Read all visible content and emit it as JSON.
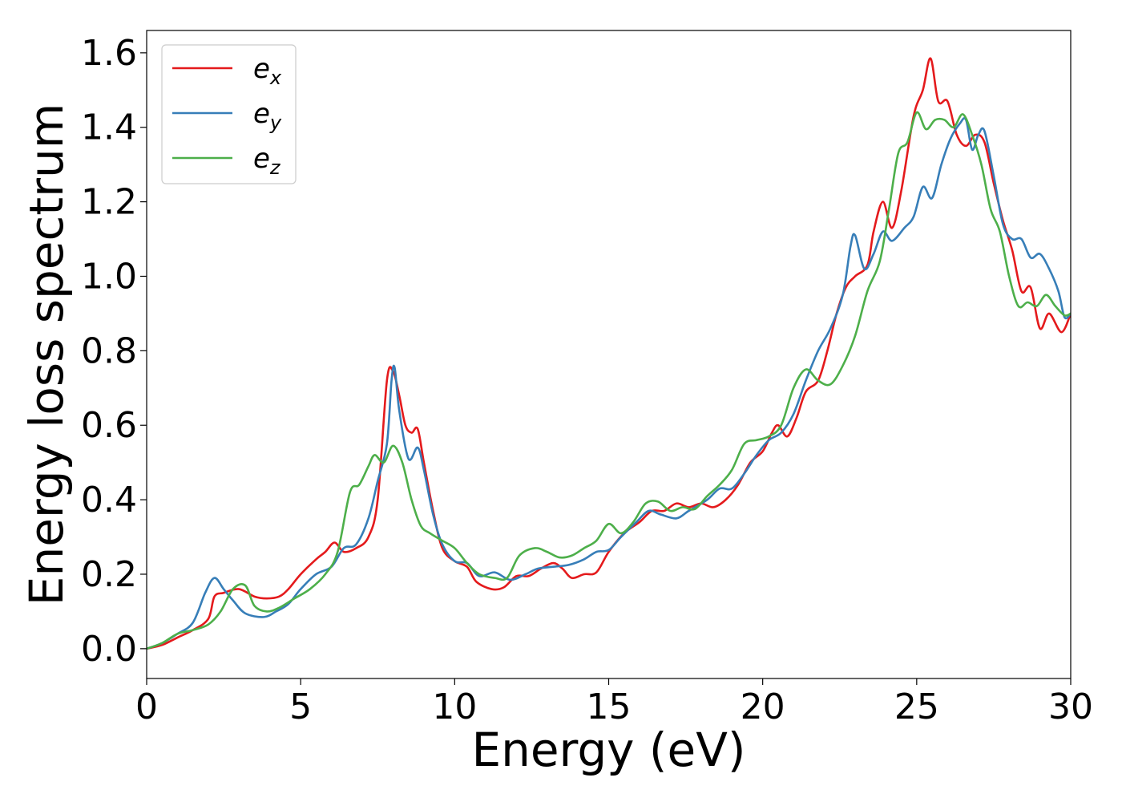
{
  "chart_data": {
    "type": "line",
    "xlabel": "Energy (eV)",
    "ylabel": "Energy loss spectrum",
    "xlim": [
      0,
      30
    ],
    "ylim": [
      -0.08,
      1.66
    ],
    "xticks": [
      "0",
      "5",
      "10",
      "15",
      "20",
      "25",
      "30"
    ],
    "yticks": [
      "0.0",
      "0.2",
      "0.4",
      "0.6",
      "0.8",
      "1.0",
      "1.2",
      "1.4",
      "1.6"
    ],
    "grid": false,
    "legend_position": "top-left",
    "series": [
      {
        "name": "e_x",
        "legend_base": "e",
        "legend_sub": "x",
        "color": "#e41a1c",
        "points": [
          [
            0,
            0
          ],
          [
            0.5,
            0.01
          ],
          [
            1,
            0.03
          ],
          [
            1.5,
            0.05
          ],
          [
            2,
            0.08
          ],
          [
            2.2,
            0.14
          ],
          [
            2.5,
            0.15
          ],
          [
            3,
            0.16
          ],
          [
            3.5,
            0.14
          ],
          [
            3.9,
            0.135
          ],
          [
            4.3,
            0.14
          ],
          [
            4.6,
            0.16
          ],
          [
            5,
            0.2
          ],
          [
            5.5,
            0.24
          ],
          [
            5.8,
            0.26
          ],
          [
            6.1,
            0.285
          ],
          [
            6.4,
            0.26
          ],
          [
            6.8,
            0.27
          ],
          [
            7.2,
            0.3
          ],
          [
            7.5,
            0.4
          ],
          [
            7.8,
            0.72
          ],
          [
            8.0,
            0.745
          ],
          [
            8.2,
            0.68
          ],
          [
            8.4,
            0.6
          ],
          [
            8.6,
            0.58
          ],
          [
            8.8,
            0.59
          ],
          [
            9.0,
            0.5
          ],
          [
            9.3,
            0.37
          ],
          [
            9.6,
            0.27
          ],
          [
            10,
            0.235
          ],
          [
            10.4,
            0.22
          ],
          [
            10.7,
            0.18
          ],
          [
            11.2,
            0.16
          ],
          [
            11.6,
            0.165
          ],
          [
            12,
            0.195
          ],
          [
            12.4,
            0.195
          ],
          [
            12.8,
            0.215
          ],
          [
            13.2,
            0.23
          ],
          [
            13.5,
            0.215
          ],
          [
            13.8,
            0.19
          ],
          [
            14.2,
            0.2
          ],
          [
            14.6,
            0.205
          ],
          [
            15,
            0.26
          ],
          [
            15.5,
            0.31
          ],
          [
            16.0,
            0.34
          ],
          [
            16.4,
            0.37
          ],
          [
            16.8,
            0.37
          ],
          [
            17.2,
            0.39
          ],
          [
            17.6,
            0.38
          ],
          [
            18,
            0.39
          ],
          [
            18.4,
            0.38
          ],
          [
            18.8,
            0.4
          ],
          [
            19.2,
            0.44
          ],
          [
            19.6,
            0.5
          ],
          [
            20,
            0.53
          ],
          [
            20.3,
            0.58
          ],
          [
            20.5,
            0.6
          ],
          [
            20.8,
            0.57
          ],
          [
            21.1,
            0.62
          ],
          [
            21.4,
            0.69
          ],
          [
            21.8,
            0.72
          ],
          [
            22.1,
            0.8
          ],
          [
            22.4,
            0.9
          ],
          [
            22.7,
            0.97
          ],
          [
            23.0,
            1.0
          ],
          [
            23.4,
            1.03
          ],
          [
            23.6,
            1.12
          ],
          [
            23.9,
            1.2
          ],
          [
            24.2,
            1.13
          ],
          [
            24.5,
            1.23
          ],
          [
            24.9,
            1.43
          ],
          [
            25.2,
            1.5
          ],
          [
            25.45,
            1.585
          ],
          [
            25.7,
            1.47
          ],
          [
            26.0,
            1.47
          ],
          [
            26.3,
            1.38
          ],
          [
            26.6,
            1.35
          ],
          [
            26.9,
            1.38
          ],
          [
            27.2,
            1.36
          ],
          [
            27.5,
            1.25
          ],
          [
            27.8,
            1.15
          ],
          [
            28.1,
            1.07
          ],
          [
            28.4,
            0.96
          ],
          [
            28.7,
            0.97
          ],
          [
            29.0,
            0.86
          ],
          [
            29.3,
            0.9
          ],
          [
            29.7,
            0.85
          ],
          [
            30,
            0.9
          ]
        ]
      },
      {
        "name": "e_y",
        "legend_base": "e",
        "legend_sub": "y",
        "color": "#377eb8",
        "points": [
          [
            0,
            0
          ],
          [
            0.5,
            0.015
          ],
          [
            1,
            0.04
          ],
          [
            1.5,
            0.07
          ],
          [
            1.9,
            0.15
          ],
          [
            2.2,
            0.19
          ],
          [
            2.5,
            0.16
          ],
          [
            2.8,
            0.13
          ],
          [
            3.2,
            0.095
          ],
          [
            3.8,
            0.085
          ],
          [
            4.2,
            0.1
          ],
          [
            4.6,
            0.12
          ],
          [
            5,
            0.16
          ],
          [
            5.5,
            0.2
          ],
          [
            6,
            0.22
          ],
          [
            6.4,
            0.27
          ],
          [
            6.8,
            0.28
          ],
          [
            7.2,
            0.35
          ],
          [
            7.5,
            0.45
          ],
          [
            7.8,
            0.55
          ],
          [
            7.95,
            0.72
          ],
          [
            8.05,
            0.755
          ],
          [
            8.2,
            0.64
          ],
          [
            8.5,
            0.51
          ],
          [
            8.8,
            0.54
          ],
          [
            9.0,
            0.48
          ],
          [
            9.3,
            0.36
          ],
          [
            9.6,
            0.28
          ],
          [
            10,
            0.235
          ],
          [
            10.4,
            0.23
          ],
          [
            10.8,
            0.195
          ],
          [
            11.3,
            0.205
          ],
          [
            11.8,
            0.185
          ],
          [
            12.3,
            0.2
          ],
          [
            12.7,
            0.215
          ],
          [
            13.2,
            0.22
          ],
          [
            13.7,
            0.225
          ],
          [
            14.2,
            0.24
          ],
          [
            14.6,
            0.26
          ],
          [
            15.0,
            0.265
          ],
          [
            15.4,
            0.3
          ],
          [
            15.9,
            0.34
          ],
          [
            16.3,
            0.37
          ],
          [
            16.7,
            0.36
          ],
          [
            17.2,
            0.35
          ],
          [
            17.6,
            0.37
          ],
          [
            18.2,
            0.4
          ],
          [
            18.6,
            0.43
          ],
          [
            19.0,
            0.43
          ],
          [
            19.4,
            0.47
          ],
          [
            19.8,
            0.52
          ],
          [
            20.2,
            0.56
          ],
          [
            20.6,
            0.58
          ],
          [
            21.0,
            0.63
          ],
          [
            21.4,
            0.72
          ],
          [
            21.8,
            0.8
          ],
          [
            22.2,
            0.86
          ],
          [
            22.6,
            0.95
          ],
          [
            22.85,
            1.08
          ],
          [
            23.0,
            1.11
          ],
          [
            23.3,
            1.02
          ],
          [
            23.6,
            1.06
          ],
          [
            23.9,
            1.12
          ],
          [
            24.2,
            1.095
          ],
          [
            24.6,
            1.13
          ],
          [
            24.9,
            1.16
          ],
          [
            25.2,
            1.24
          ],
          [
            25.5,
            1.21
          ],
          [
            25.8,
            1.3
          ],
          [
            26.1,
            1.37
          ],
          [
            26.4,
            1.41
          ],
          [
            26.6,
            1.42
          ],
          [
            26.8,
            1.34
          ],
          [
            27.0,
            1.38
          ],
          [
            27.2,
            1.39
          ],
          [
            27.5,
            1.27
          ],
          [
            27.8,
            1.14
          ],
          [
            28.1,
            1.1
          ],
          [
            28.4,
            1.1
          ],
          [
            28.7,
            1.05
          ],
          [
            29.0,
            1.06
          ],
          [
            29.3,
            1.02
          ],
          [
            29.6,
            0.96
          ],
          [
            29.8,
            0.89
          ],
          [
            30,
            0.9
          ]
        ]
      },
      {
        "name": "e_z",
        "legend_base": "e",
        "legend_sub": "z",
        "color": "#4daf4a",
        "points": [
          [
            0,
            0
          ],
          [
            0.5,
            0.015
          ],
          [
            1,
            0.04
          ],
          [
            1.5,
            0.05
          ],
          [
            2,
            0.065
          ],
          [
            2.4,
            0.1
          ],
          [
            2.8,
            0.16
          ],
          [
            3.2,
            0.17
          ],
          [
            3.5,
            0.115
          ],
          [
            3.9,
            0.1
          ],
          [
            4.3,
            0.11
          ],
          [
            4.8,
            0.135
          ],
          [
            5.3,
            0.16
          ],
          [
            5.8,
            0.2
          ],
          [
            6.2,
            0.26
          ],
          [
            6.6,
            0.42
          ],
          [
            6.9,
            0.44
          ],
          [
            7.2,
            0.49
          ],
          [
            7.4,
            0.52
          ],
          [
            7.7,
            0.5
          ],
          [
            8.0,
            0.545
          ],
          [
            8.3,
            0.5
          ],
          [
            8.6,
            0.4
          ],
          [
            8.9,
            0.33
          ],
          [
            9.2,
            0.31
          ],
          [
            9.6,
            0.29
          ],
          [
            10,
            0.27
          ],
          [
            10.4,
            0.23
          ],
          [
            10.8,
            0.2
          ],
          [
            11.3,
            0.19
          ],
          [
            11.7,
            0.19
          ],
          [
            12.1,
            0.25
          ],
          [
            12.6,
            0.27
          ],
          [
            13.0,
            0.26
          ],
          [
            13.4,
            0.245
          ],
          [
            13.8,
            0.25
          ],
          [
            14.2,
            0.27
          ],
          [
            14.6,
            0.29
          ],
          [
            15.0,
            0.335
          ],
          [
            15.4,
            0.31
          ],
          [
            15.8,
            0.34
          ],
          [
            16.2,
            0.39
          ],
          [
            16.6,
            0.395
          ],
          [
            17.0,
            0.37
          ],
          [
            17.4,
            0.38
          ],
          [
            17.8,
            0.375
          ],
          [
            18.2,
            0.41
          ],
          [
            18.6,
            0.44
          ],
          [
            19.0,
            0.48
          ],
          [
            19.4,
            0.55
          ],
          [
            19.8,
            0.56
          ],
          [
            20.2,
            0.57
          ],
          [
            20.6,
            0.6
          ],
          [
            21.0,
            0.7
          ],
          [
            21.4,
            0.75
          ],
          [
            21.8,
            0.72
          ],
          [
            22.2,
            0.71
          ],
          [
            22.6,
            0.76
          ],
          [
            23.0,
            0.84
          ],
          [
            23.4,
            0.96
          ],
          [
            23.8,
            1.04
          ],
          [
            24.1,
            1.18
          ],
          [
            24.4,
            1.33
          ],
          [
            24.7,
            1.36
          ],
          [
            25.0,
            1.44
          ],
          [
            25.3,
            1.395
          ],
          [
            25.6,
            1.42
          ],
          [
            25.9,
            1.42
          ],
          [
            26.2,
            1.4
          ],
          [
            26.5,
            1.435
          ],
          [
            26.8,
            1.38
          ],
          [
            27.1,
            1.3
          ],
          [
            27.4,
            1.18
          ],
          [
            27.7,
            1.12
          ],
          [
            28.0,
            1.0
          ],
          [
            28.3,
            0.92
          ],
          [
            28.6,
            0.93
          ],
          [
            28.9,
            0.92
          ],
          [
            29.2,
            0.95
          ],
          [
            29.5,
            0.92
          ],
          [
            29.8,
            0.895
          ],
          [
            30,
            0.9
          ]
        ]
      }
    ]
  }
}
